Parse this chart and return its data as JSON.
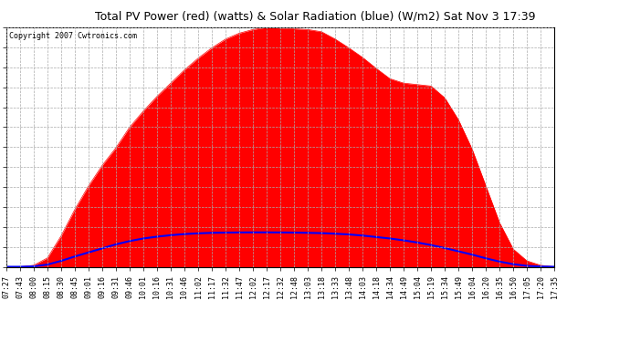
{
  "title": "Total PV Power (red) (watts) & Solar Radiation (blue) (W/m2) Sat Nov 3 17:39",
  "copyright": "Copyright 2007 Cwtronics.com",
  "background_color": "#ffffff",
  "plot_bg_color": "#ffffff",
  "y_ticks": [
    0.0,
    271.6,
    543.2,
    814.8,
    1086.5,
    1358.1,
    1629.7,
    1901.3,
    2172.9,
    2444.5,
    2716.1,
    2987.8,
    3259.4
  ],
  "y_max": 3259.4,
  "x_labels": [
    "07:27",
    "07:43",
    "08:00",
    "08:15",
    "08:30",
    "08:45",
    "09:01",
    "09:16",
    "09:31",
    "09:46",
    "10:01",
    "10:16",
    "10:31",
    "10:46",
    "11:02",
    "11:17",
    "11:32",
    "11:47",
    "12:02",
    "12:17",
    "12:32",
    "12:48",
    "13:03",
    "13:18",
    "13:33",
    "13:48",
    "14:03",
    "14:18",
    "14:34",
    "14:49",
    "15:04",
    "15:19",
    "15:34",
    "15:49",
    "16:04",
    "16:20",
    "16:35",
    "16:50",
    "17:05",
    "17:20",
    "17:35"
  ],
  "pv_color": "#ff0000",
  "solar_color": "#0000ff",
  "grid_color": "#aaaaaa",
  "grid_style": "--",
  "pv_power": [
    0,
    0,
    20,
    120,
    420,
    780,
    1100,
    1380,
    1620,
    1900,
    2120,
    2320,
    2500,
    2680,
    2840,
    2980,
    3100,
    3180,
    3230,
    3260,
    3250,
    3240,
    3230,
    3200,
    3100,
    2980,
    2850,
    2700,
    2560,
    2500,
    2480,
    2460,
    2300,
    2000,
    1600,
    1100,
    600,
    240,
    80,
    20,
    0
  ],
  "solar_radiation": [
    0,
    0,
    5,
    30,
    80,
    140,
    195,
    250,
    305,
    350,
    385,
    410,
    430,
    445,
    455,
    462,
    465,
    467,
    468,
    468,
    467,
    465,
    462,
    458,
    450,
    440,
    425,
    405,
    385,
    360,
    330,
    295,
    255,
    210,
    165,
    115,
    70,
    35,
    12,
    3,
    0
  ]
}
